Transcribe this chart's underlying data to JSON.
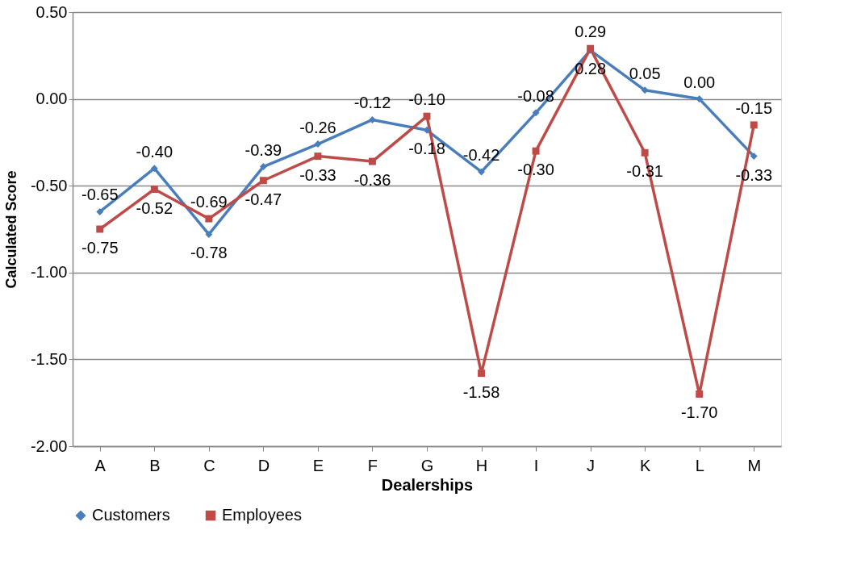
{
  "chart_data": {
    "type": "line",
    "xlabel": "Dealerships",
    "ylabel": "Calculated Score",
    "categories": [
      "A",
      "B",
      "C",
      "D",
      "E",
      "F",
      "G",
      "H",
      "I",
      "J",
      "K",
      "L",
      "M"
    ],
    "series": [
      {
        "name": "Customers",
        "color": "#4a7ebb",
        "marker": "diamond",
        "values": [
          -0.65,
          -0.4,
          -0.78,
          -0.39,
          -0.26,
          -0.12,
          -0.18,
          -0.42,
          -0.08,
          0.28,
          0.05,
          0.0,
          -0.33
        ],
        "value_labels": [
          "-0.65",
          "-0.40",
          "-0.78",
          "-0.39",
          "-0.26",
          "-0.12",
          "-0.18",
          "-0.42",
          "-0.08",
          "0.28",
          "0.05",
          "0.00",
          "-0.33"
        ]
      },
      {
        "name": "Employees",
        "color": "#be4b48",
        "marker": "square",
        "values": [
          -0.75,
          -0.52,
          -0.69,
          -0.47,
          -0.33,
          -0.36,
          -0.1,
          -1.58,
          -0.3,
          0.29,
          -0.31,
          -1.7,
          -0.15
        ],
        "value_labels": [
          "-0.75",
          "-0.52",
          "-0.69",
          "-0.47",
          "-0.33",
          "-0.36",
          "-0.10",
          "-1.58",
          "-0.30",
          "0.29",
          "-0.31",
          "-1.70",
          "-0.15"
        ]
      }
    ],
    "ylim": [
      -2.0,
      0.5
    ],
    "yticks": [
      {
        "value": -2.0,
        "label": "-2.00"
      },
      {
        "value": -1.5,
        "label": "-1.50"
      },
      {
        "value": -1.0,
        "label": "-1.00"
      },
      {
        "value": -0.5,
        "label": "-0.50"
      },
      {
        "value": 0.0,
        "label": "0.00"
      },
      {
        "value": 0.5,
        "label": "0.50"
      }
    ],
    "grid": "y",
    "legend": "bottom",
    "line_style": "solid"
  }
}
